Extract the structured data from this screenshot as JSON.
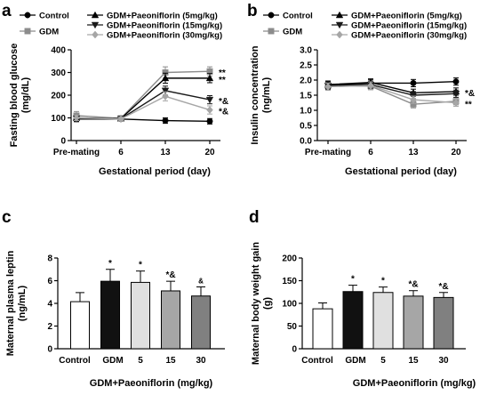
{
  "panels": [
    {
      "letter": "a",
      "chart_data": {
        "type": "line",
        "xlabel": "Gestational period (day)",
        "ylabel": "Fasting blood glucose (mg/dL)",
        "categories": [
          "Pre-mating",
          "6",
          "13",
          "20"
        ],
        "ylim": [
          0,
          400
        ],
        "yticks": [
          0,
          100,
          200,
          300,
          400
        ],
        "series": [
          {
            "name": "Control",
            "color": "#000000",
            "marker": "circle",
            "values": [
              95,
              95,
              88,
              85
            ],
            "errors": [
              12,
              8,
              12,
              12
            ]
          },
          {
            "name": "GDM",
            "color": "#8c8c8c",
            "marker": "square",
            "values": [
              110,
              98,
              300,
              305
            ],
            "errors": [
              18,
              10,
              25,
              20
            ]
          },
          {
            "name": "GDM+Paeoniflorin (5mg/kg)",
            "color": "#000000",
            "marker": "triangle",
            "values": [
              100,
              97,
              275,
              275
            ],
            "errors": [
              12,
              8,
              22,
              20
            ]
          },
          {
            "name": "GDM+Paeoniflorin (15mg/kg)",
            "color": "#1a1a1a",
            "marker": "triangle-down",
            "values": [
              98,
              96,
              220,
              180
            ],
            "errors": [
              12,
              8,
              20,
              18
            ]
          },
          {
            "name": "GDM+Paeoniflorin (30mg/kg)",
            "color": "#a6a6a6",
            "marker": "diamond",
            "values": [
              100,
              95,
              195,
              135
            ],
            "errors": [
              12,
              8,
              20,
              18
            ]
          }
        ],
        "annotations": [
          {
            "text": "**",
            "series": 1,
            "x": "20"
          },
          {
            "text": "**",
            "series": 2,
            "x": "20"
          },
          {
            "text": "*&",
            "series": 3,
            "x": "20"
          },
          {
            "text": "*&",
            "series": 4,
            "x": "20"
          }
        ]
      }
    },
    {
      "letter": "b",
      "chart_data": {
        "type": "line",
        "xlabel": "Gestational period (day)",
        "ylabel": "Insulin concentration (ng/mL)",
        "categories": [
          "Pre-mating",
          "6",
          "13",
          "20"
        ],
        "ylim": [
          0,
          3
        ],
        "yticks": [
          0.0,
          0.5,
          1.0,
          1.5,
          2.0,
          2.5,
          3.0
        ],
        "ytick_labels": [
          "0.0",
          "0.5",
          "1.0",
          "1.5",
          "2.0",
          "2.5",
          "3.0"
        ],
        "series": [
          {
            "name": "Control",
            "color": "#000000",
            "marker": "circle",
            "values": [
              1.85,
              1.9,
              1.9,
              1.95
            ],
            "errors": [
              0.12,
              0.12,
              0.12,
              0.12
            ]
          },
          {
            "name": "GDM",
            "color": "#8c8c8c",
            "marker": "square",
            "values": [
              1.8,
              1.8,
              1.2,
              1.3
            ],
            "errors": [
              0.12,
              0.12,
              0.12,
              0.12
            ]
          },
          {
            "name": "GDM+Paeoniflorin (5mg/kg)",
            "color": "#000000",
            "marker": "triangle",
            "values": [
              1.85,
              1.92,
              1.58,
              1.62
            ],
            "errors": [
              0.12,
              0.12,
              0.12,
              0.12
            ]
          },
          {
            "name": "GDM+Paeoniflorin (15mg/kg)",
            "color": "#1a1a1a",
            "marker": "triangle-down",
            "values": [
              1.82,
              1.85,
              1.5,
              1.55
            ],
            "errors": [
              0.12,
              0.12,
              0.12,
              0.12
            ]
          },
          {
            "name": "GDM+Paeoniflorin (30mg/kg)",
            "color": "#a6a6a6",
            "marker": "diamond",
            "values": [
              1.78,
              1.82,
              1.35,
              1.25
            ],
            "errors": [
              0.12,
              0.12,
              0.12,
              0.12
            ]
          }
        ],
        "annotations": [
          {
            "text": "*&",
            "series": 2,
            "x": "20"
          },
          {
            "text": "**",
            "series": 4,
            "x": "20"
          }
        ]
      }
    },
    {
      "letter": "c",
      "chart_data": {
        "type": "bar",
        "ylabel": "Maternal plasma leptin (ng/mL)",
        "group_label": "GDM+Paeoniflorin (mg/kg)",
        "categories": [
          "Control",
          "GDM",
          "5",
          "15",
          "30"
        ],
        "values": [
          4.15,
          5.95,
          5.85,
          5.1,
          4.65
        ],
        "errors": [
          0.8,
          1.05,
          1.0,
          0.85,
          0.8
        ],
        "fills": [
          "#ffffff",
          "#111111",
          "#e0e0e0",
          "#a6a6a6",
          "#808080"
        ],
        "ylim": [
          0,
          8
        ],
        "yticks": [
          0,
          2,
          4,
          6,
          8
        ],
        "annotations": [
          "",
          "*",
          "*",
          "*&",
          "&"
        ]
      }
    },
    {
      "letter": "d",
      "chart_data": {
        "type": "bar",
        "ylabel": "Maternal body weight gain (g)",
        "group_label": "GDM+Paeoniflorin (mg/kg)",
        "categories": [
          "Control",
          "GDM",
          "5",
          "15",
          "30"
        ],
        "values": [
          88,
          126,
          124,
          116,
          113
        ],
        "errors": [
          13,
          14,
          12,
          12,
          11
        ],
        "fills": [
          "#ffffff",
          "#111111",
          "#e0e0e0",
          "#a6a6a6",
          "#808080"
        ],
        "ylim": [
          0,
          200
        ],
        "yticks": [
          0,
          50,
          100,
          150,
          200
        ],
        "annotations": [
          "",
          "*",
          "*",
          "*&",
          "*&"
        ]
      }
    }
  ]
}
